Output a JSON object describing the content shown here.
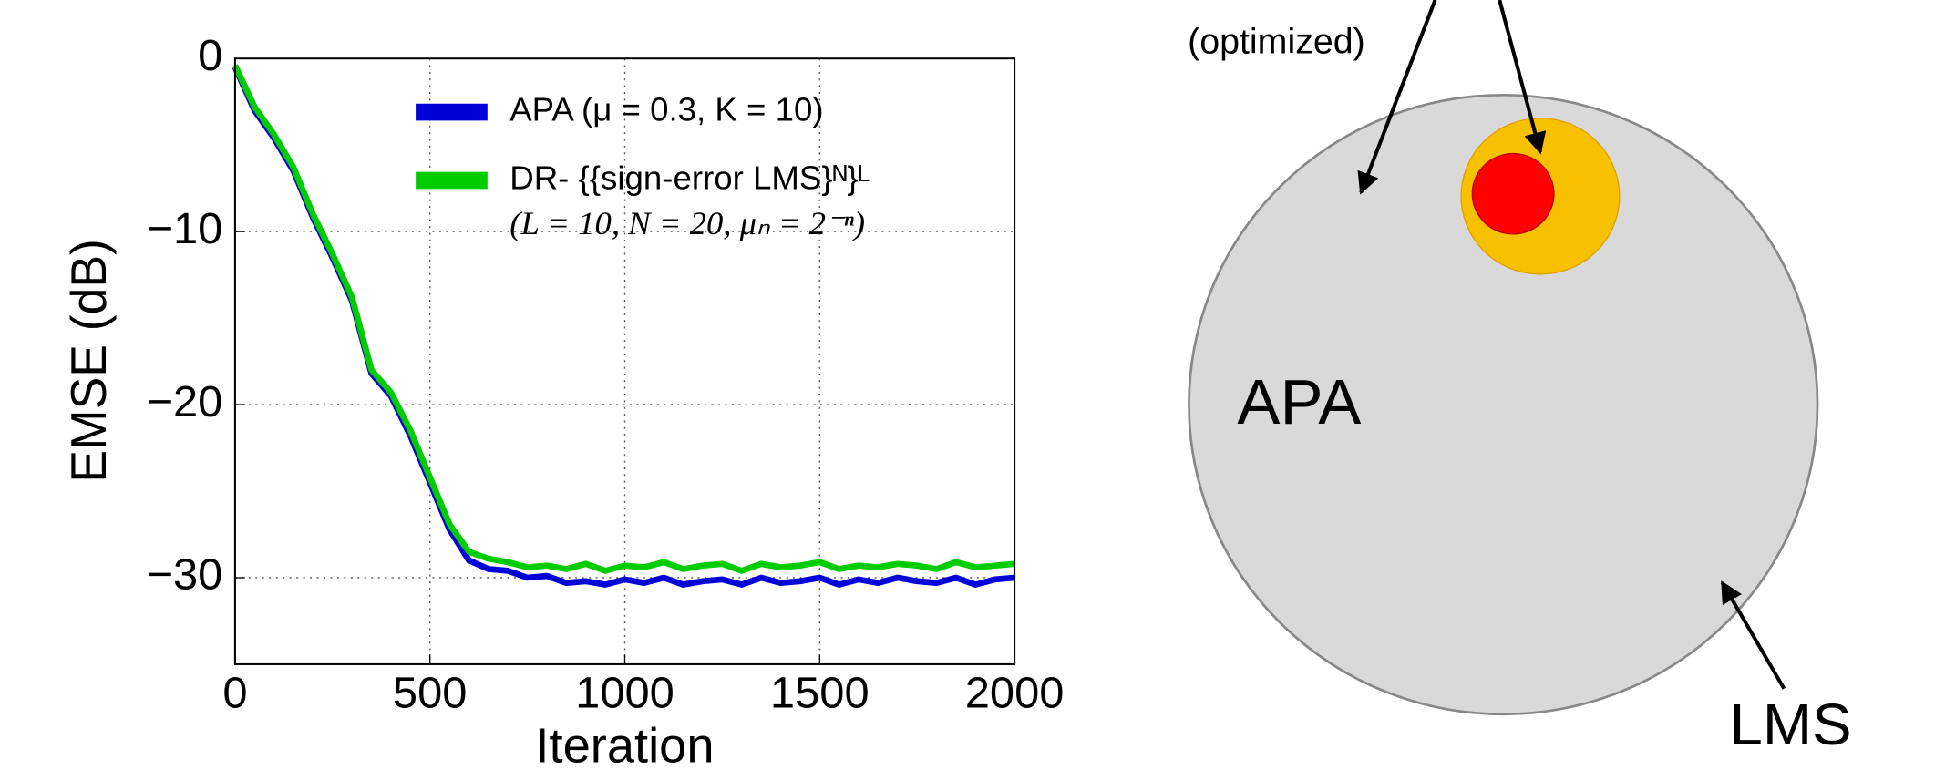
{
  "chart_data": {
    "type": "line",
    "y_label": "EMSE (dB)",
    "x_label": "Iteration",
    "x": [
      0,
      50,
      100,
      150,
      200,
      250,
      300,
      350,
      400,
      450,
      500,
      550,
      600,
      650,
      700,
      750,
      800,
      850,
      900,
      950,
      1000,
      1050,
      1100,
      1150,
      1200,
      1250,
      1300,
      1350,
      1400,
      1450,
      1500,
      1550,
      1600,
      1650,
      1700,
      1750,
      1800,
      1850,
      1900,
      1950,
      2000
    ],
    "series": [
      {
        "name": "APA (μ = 0.3, K = 10)",
        "color": "#0000d8",
        "values": [
          -0.5,
          -3,
          -4.6,
          -6.5,
          -9.2,
          -11.5,
          -14,
          -18.2,
          -19.5,
          -21.8,
          -24.5,
          -27.2,
          -29,
          -29.5,
          -29.6,
          -30,
          -29.9,
          -30.3,
          -30.2,
          -30.4,
          -30.1,
          -30.3,
          -30,
          -30.4,
          -30.2,
          -30.1,
          -30.4,
          -30,
          -30.3,
          -30.2,
          -30,
          -30.4,
          -30.1,
          -30.3,
          -30,
          -30.2,
          -30.3,
          -30,
          -30.4,
          -30.1,
          -30
        ]
      },
      {
        "name": "DR- {{sign-error LMS}ᴺ}ᴸ",
        "color": "#00cc00",
        "values": [
          -0.4,
          -2.8,
          -4.4,
          -6.3,
          -9,
          -11.3,
          -13.8,
          -18,
          -19.3,
          -21.5,
          -24.2,
          -26.9,
          -28.5,
          -28.9,
          -29.1,
          -29.4,
          -29.3,
          -29.5,
          -29.2,
          -29.6,
          -29.3,
          -29.4,
          -29.1,
          -29.5,
          -29.3,
          -29.2,
          -29.6,
          -29.2,
          -29.4,
          -29.3,
          -29.1,
          -29.5,
          -29.3,
          -29.4,
          -29.2,
          -29.3,
          -29.5,
          -29.1,
          -29.4,
          -29.3,
          -29.2
        ]
      }
    ],
    "legend_params": "(L = 10, N = 20, μₙ = 2⁻ⁿ)",
    "xlim": [
      0,
      2000
    ],
    "xticks": [
      0,
      500,
      1000,
      1500,
      2000
    ],
    "ylim": [
      -35,
      0
    ],
    "yticks": [
      {
        "value": 0,
        "label": "0"
      },
      {
        "value": -10,
        "label": "−10"
      },
      {
        "value": -20,
        "label": "−20"
      },
      {
        "value": -30,
        "label": "−30"
      }
    ],
    "grid": true,
    "legend": "upper right"
  },
  "diagram": {
    "labels": {
      "optimized": "(optimized)",
      "apa": "APA",
      "lms": "LMS"
    }
  }
}
